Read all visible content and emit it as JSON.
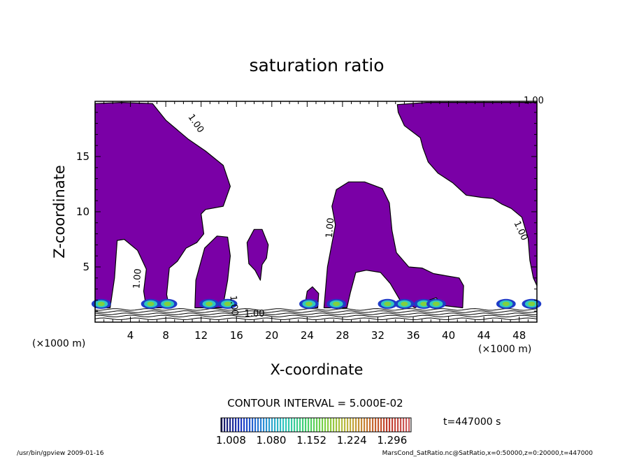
{
  "chart_data": {
    "type": "heatmap",
    "title": "saturation ratio",
    "xlabel": "X-coordinate",
    "ylabel": "Z-coordinate",
    "x_unit": "(×1000 m)",
    "y_unit": "(×1000 m)",
    "xlim": [
      0,
      50
    ],
    "ylim": [
      0,
      20
    ],
    "x_ticks": [
      4,
      8,
      12,
      16,
      20,
      24,
      28,
      32,
      36,
      40,
      44,
      48
    ],
    "y_ticks": [
      5,
      10,
      15
    ],
    "grid": false,
    "contour_interval_text": "CONTOUR INTERVAL = 5.000E-02",
    "colorbar": {
      "ticks": [
        "1.008",
        "1.080",
        "1.152",
        "1.224",
        "1.296"
      ],
      "range": [
        0.99,
        1.33
      ],
      "colors": [
        "#1a1a60",
        "#1f3cc8",
        "#2a8cd8",
        "#30c8c0",
        "#40d070",
        "#80d040",
        "#c0b840",
        "#c87830",
        "#c03c2c",
        "#d06060"
      ]
    },
    "contour_labels": [
      "1.00",
      "1.00",
      "1.00",
      "1.00",
      "1.00",
      "1.00",
      "1.00"
    ],
    "fill_color": "#7a00a6",
    "regions": [
      {
        "name": "left-plume",
        "points": [
          [
            0,
            19.8
          ],
          [
            3,
            19.9
          ],
          [
            6.5,
            19.8
          ],
          [
            8,
            18.3
          ],
          [
            10.5,
            16.6
          ],
          [
            12.5,
            15.5
          ],
          [
            14.5,
            14.2
          ],
          [
            15.3,
            12.3
          ],
          [
            14.5,
            10.5
          ],
          [
            12.5,
            10.2
          ],
          [
            12,
            9.8
          ],
          [
            12.3,
            8.0
          ],
          [
            11.5,
            7.2
          ],
          [
            10.3,
            6.7
          ],
          [
            9.3,
            5.5
          ],
          [
            8.4,
            4.9
          ],
          [
            8.1,
            2.5
          ],
          [
            8.4,
            1.3
          ],
          [
            5.8,
            1.3
          ],
          [
            5.5,
            2.8
          ],
          [
            5.8,
            4.8
          ],
          [
            4.8,
            6.5
          ],
          [
            3.3,
            7.5
          ],
          [
            2.5,
            7.4
          ],
          [
            2.2,
            4.0
          ],
          [
            1.7,
            1.3
          ],
          [
            0,
            1.3
          ]
        ]
      },
      {
        "name": "plume-12",
        "points": [
          [
            11.3,
            1.3
          ],
          [
            11.4,
            3.8
          ],
          [
            12.4,
            6.7
          ],
          [
            13.8,
            7.8
          ],
          [
            15.0,
            7.7
          ],
          [
            15.3,
            6.0
          ],
          [
            15.0,
            3.8
          ],
          [
            14.6,
            2.0
          ],
          [
            14.8,
            1.3
          ]
        ]
      },
      {
        "name": "blob-19",
        "points": [
          [
            17.3,
            6.2
          ],
          [
            17.2,
            7.2
          ],
          [
            18.0,
            8.4
          ],
          [
            18.9,
            8.4
          ],
          [
            19.6,
            7.0
          ],
          [
            19.4,
            5.8
          ],
          [
            18.9,
            5.2
          ],
          [
            18.7,
            3.8
          ],
          [
            18.1,
            4.7
          ],
          [
            17.4,
            5.3
          ]
        ]
      },
      {
        "name": "plume-27",
        "points": [
          [
            25.9,
            1.3
          ],
          [
            26.3,
            5.0
          ],
          [
            27.2,
            8.8
          ],
          [
            26.8,
            10.5
          ],
          [
            27.3,
            12.0
          ],
          [
            28.7,
            12.7
          ],
          [
            30.5,
            12.7
          ],
          [
            32.5,
            12.1
          ],
          [
            33.3,
            10.8
          ],
          [
            33.6,
            8.3
          ],
          [
            34.1,
            6.3
          ],
          [
            35.5,
            5.0
          ],
          [
            37.0,
            4.9
          ],
          [
            38.3,
            4.4
          ],
          [
            39.7,
            4.2
          ],
          [
            41.2,
            4.0
          ],
          [
            41.7,
            3.3
          ],
          [
            41.6,
            1.3
          ],
          [
            39.4,
            1.5
          ],
          [
            38.6,
            2.2
          ],
          [
            37.8,
            2.0
          ],
          [
            36.2,
            1.3
          ],
          [
            34.5,
            2.0
          ],
          [
            33.4,
            3.5
          ],
          [
            32.3,
            4.5
          ],
          [
            30.7,
            4.7
          ],
          [
            29.5,
            4.5
          ],
          [
            28.9,
            2.7
          ],
          [
            28.5,
            1.3
          ]
        ]
      },
      {
        "name": "small-23",
        "points": [
          [
            23.7,
            1.3
          ],
          [
            24.0,
            2.8
          ],
          [
            24.6,
            3.2
          ],
          [
            25.3,
            2.6
          ],
          [
            25.2,
            1.3
          ]
        ]
      },
      {
        "name": "right-plume",
        "points": [
          [
            34.2,
            19.7
          ],
          [
            37.5,
            19.9
          ],
          [
            41.5,
            19.9
          ],
          [
            50,
            19.9
          ],
          [
            50,
            3.3
          ],
          [
            49.6,
            4.0
          ],
          [
            49.2,
            5.6
          ],
          [
            49.0,
            7.6
          ],
          [
            48.3,
            9.5
          ],
          [
            47.1,
            10.3
          ],
          [
            46.0,
            10.7
          ],
          [
            45.0,
            11.2
          ],
          [
            43.7,
            11.3
          ],
          [
            42.0,
            11.5
          ],
          [
            40.5,
            12.6
          ],
          [
            38.8,
            13.5
          ],
          [
            37.7,
            14.5
          ],
          [
            37.1,
            15.8
          ],
          [
            36.8,
            16.7
          ],
          [
            35.0,
            17.8
          ],
          [
            34.3,
            19.0
          ]
        ]
      }
    ],
    "layer_line_heights": [
      0.3,
      0.55,
      0.75,
      0.95,
      1.15
    ]
  },
  "footer": {
    "time": "t=447000 s",
    "left": "/usr/bin/gpview   2009-01-16",
    "right": "MarsCond_SatRatio.nc@SatRatio,x=0:50000,z=0:20000,t=447000"
  }
}
